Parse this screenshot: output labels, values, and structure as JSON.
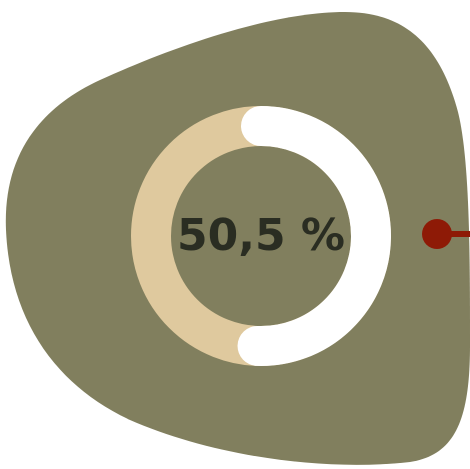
{
  "chart_data": {
    "type": "donut",
    "value_percent": 50.5,
    "label": "50,5 %"
  },
  "colors": {
    "blob": "#817f5e",
    "donut_filled": "#ffffff",
    "donut_remaining": "#dfc99e",
    "label_text": "#2a2d22",
    "connector": "#8e1a06"
  }
}
